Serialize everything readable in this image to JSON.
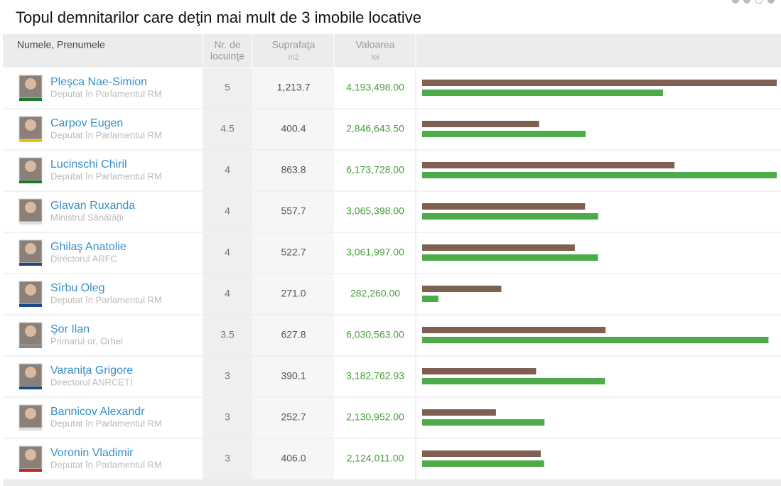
{
  "title": "Topul demnitarilor care deţin mai mult de 3 imobile locative",
  "columns": {
    "name": "Numele, Prenumele",
    "dwellings": [
      "Nr. de",
      "locuinţe"
    ],
    "area": {
      "title": "Suprafaţa",
      "unit": "m2"
    },
    "value": {
      "title": "Valoarea",
      "unit": "lei"
    }
  },
  "colors": {
    "area_bar": "#7f5f4f",
    "value_bar": "#4eab4a"
  },
  "rows": [
    {
      "name": "Pleşca Nae-Simion",
      "position": "Deputat în Parlamentul RM",
      "dwellings": 5,
      "area": {
        "value": 1213.7,
        "label": "1,213.7"
      },
      "value": {
        "value": 4193498.0,
        "label": "4,193,498.00"
      }
    },
    {
      "name": "Carpov Eugen",
      "position": "Deputat în Parlamentul RM",
      "dwellings": 4.5,
      "area": {
        "value": 400.4,
        "label": "400.4"
      },
      "value": {
        "value": 2846643.5,
        "label": "2,846,643.50"
      }
    },
    {
      "name": "Lucinschi Chiril",
      "position": "Deputat în Parlamentul RM",
      "dwellings": 4,
      "area": {
        "value": 863.8,
        "label": "863.8"
      },
      "value": {
        "value": 6173728.0,
        "label": "6,173,728.00"
      }
    },
    {
      "name": "Glavan Ruxanda",
      "position": "Ministrul Sănătăţii",
      "dwellings": 4,
      "area": {
        "value": 557.7,
        "label": "557.7"
      },
      "value": {
        "value": 3065398.0,
        "label": "3,065,398.00"
      }
    },
    {
      "name": "Ghilaş Anatolie",
      "position": "Directorul ARFC",
      "dwellings": 4,
      "area": {
        "value": 522.7,
        "label": "522.7"
      },
      "value": {
        "value": 3061997.0,
        "label": "3,061,997.00"
      }
    },
    {
      "name": "Sîrbu Oleg",
      "position": "Deputat în Parlamentul RM",
      "dwellings": 4,
      "area": {
        "value": 271.0,
        "label": "271.0"
      },
      "value": {
        "value": 282260.0,
        "label": "282,260.00"
      }
    },
    {
      "name": "Şor Ilan",
      "position": "Primarul or. Orhei",
      "dwellings": 3.5,
      "area": {
        "value": 627.8,
        "label": "627.8"
      },
      "value": {
        "value": 6030563.0,
        "label": "6,030,563.00"
      }
    },
    {
      "name": "Varaniţa Grigore",
      "position": "Directorul ANRCETI",
      "dwellings": 3,
      "area": {
        "value": 390.1,
        "label": "390.1"
      },
      "value": {
        "value": 3182762.93,
        "label": "3,182,762.93"
      }
    },
    {
      "name": "Bannicov Alexandr",
      "position": "Deputat în Parlamentul RM",
      "dwellings": 3,
      "area": {
        "value": 252.7,
        "label": "252.7"
      },
      "value": {
        "value": 2130952.0,
        "label": "2,130,952.00"
      }
    },
    {
      "name": "Voronin Vladimir",
      "position": "Deputat în Parlamentul RM",
      "dwellings": 3,
      "area": {
        "value": 406.0,
        "label": "406.0"
      },
      "value": {
        "value": 2124011.0,
        "label": "2,124,011.00"
      }
    }
  ]
}
